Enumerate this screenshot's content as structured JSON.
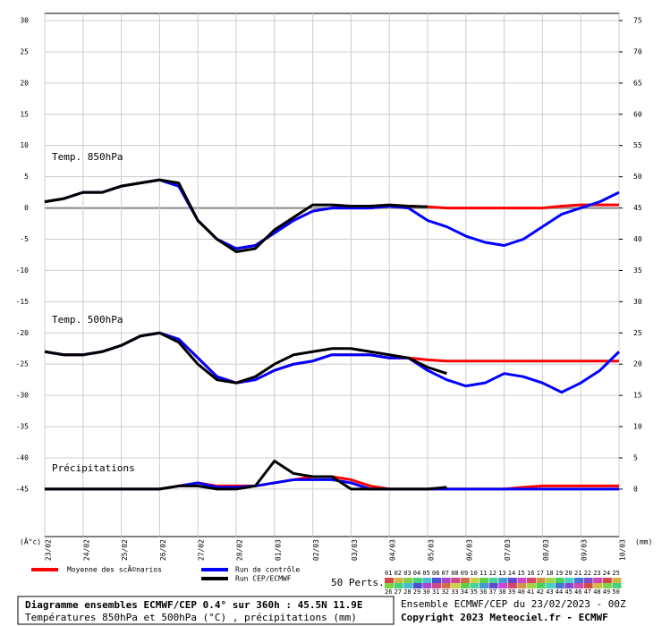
{
  "chart_data": {
    "type": "line",
    "panel_labels": [
      "Temp. 850hPa",
      "Temp. 500hPa",
      "Précipitations"
    ],
    "y_unit": "(Â°c)",
    "y2_unit": "(mm)",
    "x": [
      0,
      0.5,
      1,
      1.5,
      2,
      2.5,
      3,
      3.5,
      4,
      4.5,
      5,
      5.5,
      6,
      6.5,
      7,
      7.5,
      8,
      8.5,
      9,
      9.5,
      10,
      10.5,
      11,
      11.5,
      12,
      12.5,
      13,
      13.5,
      14,
      14.5,
      15
    ],
    "xlim": [
      0,
      15
    ],
    "xticks": [
      {
        "value": 0,
        "label": "23/02"
      },
      {
        "value": 1,
        "label": "24/02"
      },
      {
        "value": 2,
        "label": "25/02"
      },
      {
        "value": 3,
        "label": "26/02"
      },
      {
        "value": 4,
        "label": "27/02"
      },
      {
        "value": 5,
        "label": "28/02"
      },
      {
        "value": 6,
        "label": "01/03"
      },
      {
        "value": 7,
        "label": "02/03"
      },
      {
        "value": 8,
        "label": "03/03"
      },
      {
        "value": 9,
        "label": "04/03"
      },
      {
        "value": 10,
        "label": "05/03"
      },
      {
        "value": 11,
        "label": "06/03"
      },
      {
        "value": 12,
        "label": "07/03"
      },
      {
        "value": 13,
        "label": "08/03"
      },
      {
        "value": 14,
        "label": "09/03"
      },
      {
        "value": 15,
        "label": "10/03"
      }
    ],
    "ylim": [
      -52.6,
      31.15
    ],
    "yticks": [
      30,
      25,
      20,
      15,
      10,
      5,
      0,
      -5,
      -10,
      -15,
      -20,
      -25,
      -30,
      -35,
      -40,
      -45
    ],
    "y2lim": [
      -7.6,
      76.15
    ],
    "y2ticks": [
      75,
      70,
      65,
      60,
      55,
      50,
      45,
      40,
      35,
      30,
      25,
      20,
      15,
      10,
      5,
      0
    ],
    "grid": true,
    "series": [
      {
        "name": "Moyenne des scÃ©narios",
        "color": "#ff0000",
        "t850": [
          1,
          1.5,
          2.5,
          2.5,
          3.5,
          4,
          4.5,
          3.5,
          -2,
          -5,
          -6.5,
          -6,
          -4,
          -2,
          -0.5,
          0,
          0,
          0,
          0.3,
          0.3,
          0.2,
          0,
          0,
          0,
          0,
          0,
          0,
          0.3,
          0.5,
          0.5,
          0.5
        ],
        "t500": [
          -23,
          -23.5,
          -23.5,
          -23,
          -22,
          -20.5,
          -20,
          -21,
          -24,
          -27,
          -28,
          -27.5,
          -26,
          -25,
          -24.5,
          -23.5,
          -23.5,
          -23.5,
          -24,
          -24,
          -24.3,
          -24.5,
          -24.5,
          -24.5,
          -24.5,
          -24.5,
          -24.5,
          -24.5,
          -24.5,
          -24.5,
          -24.5
        ],
        "precip": [
          0,
          0,
          0,
          0,
          0,
          0,
          0,
          0.5,
          1,
          0.5,
          0.5,
          0.5,
          1,
          1.5,
          2,
          2,
          1.5,
          0.5,
          0,
          0,
          0,
          0,
          0,
          0,
          0,
          0.3,
          0.5,
          0.5,
          0.5,
          0.5,
          0.5
        ]
      },
      {
        "name": "Run de contrôle",
        "color": "#0000ff",
        "t850": [
          1,
          1.5,
          2.5,
          2.5,
          3.5,
          4,
          4.5,
          3.5,
          -2,
          -5,
          -6.5,
          -6,
          -4,
          -2,
          -0.5,
          0,
          0,
          0,
          0.3,
          0,
          -2,
          -3,
          -4.5,
          -5.5,
          -6,
          -5,
          -3,
          -1,
          0,
          1,
          2.5
        ],
        "t500": [
          -23,
          -23.5,
          -23.5,
          -23,
          -22,
          -20.5,
          -20,
          -21,
          -24,
          -27,
          -28,
          -27.5,
          -26,
          -25,
          -24.5,
          -23.5,
          -23.5,
          -23.5,
          -24,
          -24,
          -26,
          -27.5,
          -28.5,
          -28,
          -26.5,
          -27,
          -28,
          -29.5,
          -28,
          -26,
          -23
        ],
        "precip": [
          0,
          0,
          0,
          0,
          0,
          0,
          0,
          0.5,
          1,
          0.3,
          0.3,
          0.5,
          1,
          1.5,
          1.5,
          1.5,
          1,
          0,
          0,
          0,
          0,
          0,
          0,
          0,
          0,
          0,
          0,
          0,
          0,
          0,
          0
        ]
      },
      {
        "name": "Run CEP/ECMWF",
        "color": "#000000",
        "t850": [
          1,
          1.5,
          2.5,
          2.5,
          3.5,
          4,
          4.5,
          4,
          -2,
          -5,
          -7,
          -6.5,
          -3.5,
          -1.5,
          0.5,
          0.5,
          0.3,
          0.3,
          0.5,
          0.3,
          0.2,
          null,
          null,
          null,
          null,
          null,
          null,
          null,
          null,
          null,
          null
        ],
        "t500": [
          -23,
          -23.5,
          -23.5,
          -23,
          -22,
          -20.5,
          -20,
          -21.5,
          -25,
          -27.5,
          -28,
          -27,
          -25,
          -23.5,
          -23,
          -22.5,
          -22.5,
          -23,
          -23.5,
          -24,
          -25.5,
          -26.5,
          null,
          null,
          null,
          null,
          null,
          null,
          null,
          null,
          null
        ],
        "precip": [
          0,
          0,
          0,
          0,
          0,
          0,
          0,
          0.5,
          0.5,
          0,
          0,
          0.5,
          4.5,
          2.5,
          2,
          2,
          0,
          0,
          0,
          0,
          0,
          0.3,
          null,
          null,
          null,
          null,
          null,
          null,
          null,
          null,
          null
        ]
      }
    ],
    "perturbations_label": "50 Perts.",
    "perturbations": [
      "01",
      "02",
      "03",
      "04",
      "05",
      "06",
      "07",
      "08",
      "09",
      "10",
      "11",
      "12",
      "13",
      "14",
      "15",
      "16",
      "17",
      "18",
      "19",
      "20",
      "21",
      "22",
      "23",
      "24",
      "25",
      "26",
      "27",
      "28",
      "29",
      "30",
      "31",
      "32",
      "33",
      "34",
      "35",
      "36",
      "37",
      "38",
      "39",
      "40",
      "41",
      "42",
      "43",
      "44",
      "45",
      "46",
      "47",
      "48",
      "49",
      "50"
    ],
    "footer": {
      "title": "Diagramme ensembles ECMWF/CEP 0.4° sur 360h : 45.5N 11.9E",
      "subtitle": "Températures 850hPa et 500hPa (°C) , précipitations (mm)",
      "run": "Ensemble ECMWF/CEP du 23/02/2023 - 00Z",
      "copyright": "Copyright 2023 Meteociel.fr - ECMWF"
    }
  }
}
